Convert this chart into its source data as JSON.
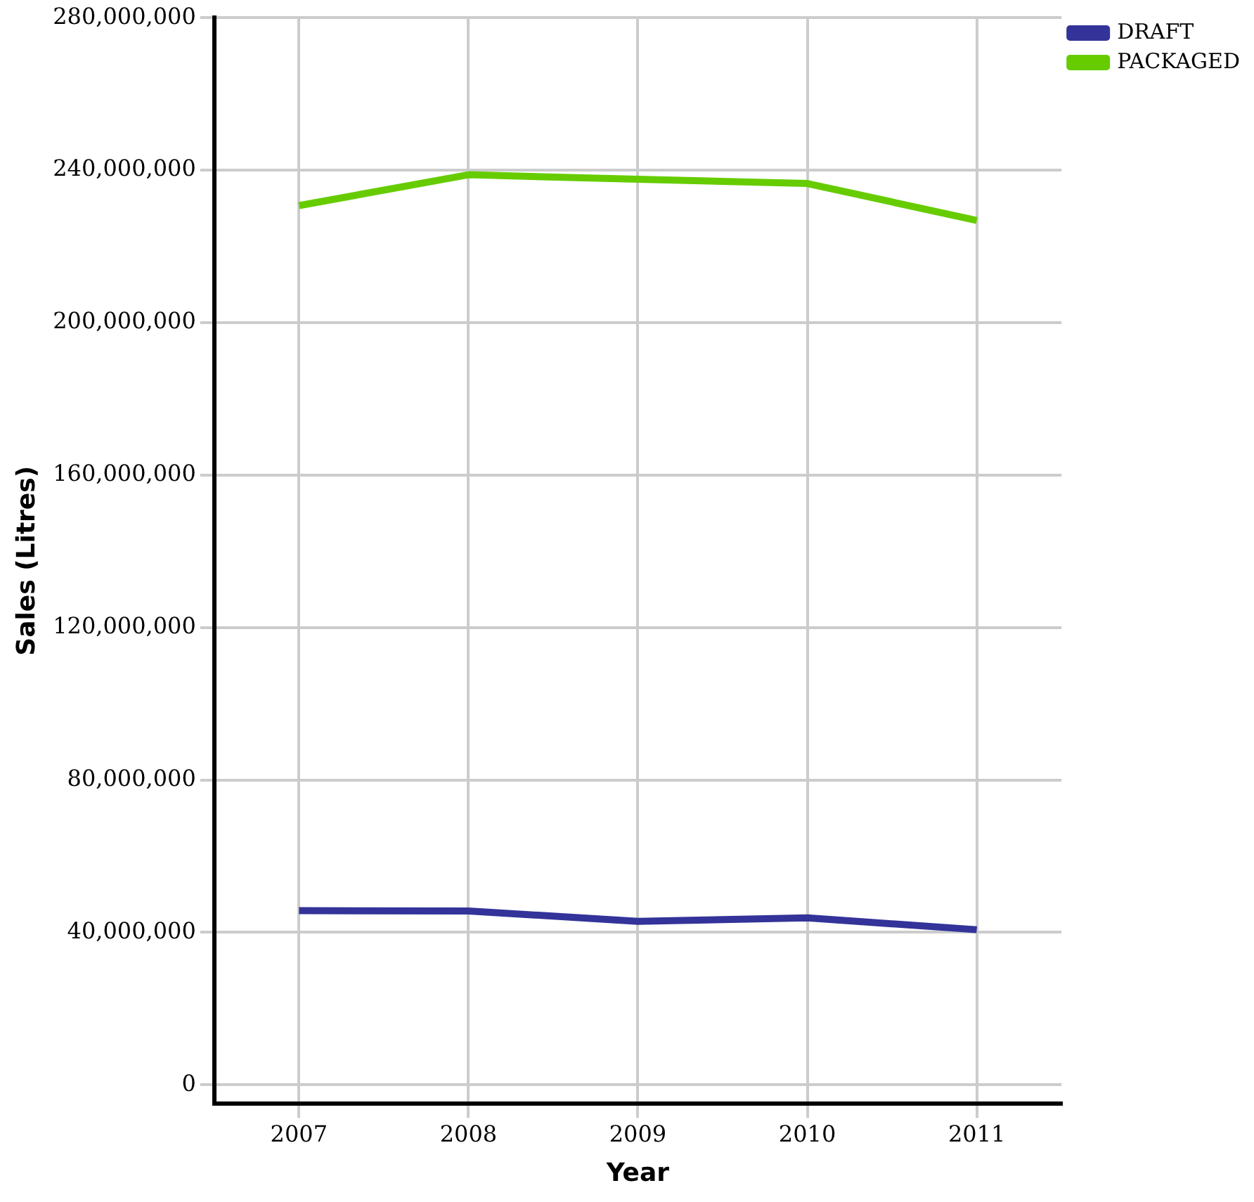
{
  "chart_data": {
    "type": "line",
    "xlabel": "Year",
    "ylabel": "Sales (Litres)",
    "categories": [
      "2007",
      "2008",
      "2009",
      "2010",
      "2011"
    ],
    "series": [
      {
        "name": "DRAFT",
        "color": "#333399",
        "values": [
          45700000,
          45600000,
          42900000,
          43800000,
          40700000
        ]
      },
      {
        "name": "PACKAGED",
        "color": "#66cc00",
        "values": [
          230700000,
          238800000,
          237600000,
          236500000,
          226800000
        ]
      }
    ],
    "ylim": [
      -5000000,
      280000000
    ],
    "yticks": [
      {
        "value": 0,
        "label": "0"
      },
      {
        "value": 40000000,
        "label": "40,000,000"
      },
      {
        "value": 80000000,
        "label": "80,000,000"
      },
      {
        "value": 120000000,
        "label": "120,000,000"
      },
      {
        "value": 160000000,
        "label": "160,000,000"
      },
      {
        "value": 200000000,
        "label": "200,000,000"
      },
      {
        "value": 240000000,
        "label": "240,000,000"
      },
      {
        "value": 280000000,
        "label": "280,000,000"
      }
    ],
    "grid": true,
    "legend": "top right",
    "marker": "none",
    "line_style": "solid"
  }
}
